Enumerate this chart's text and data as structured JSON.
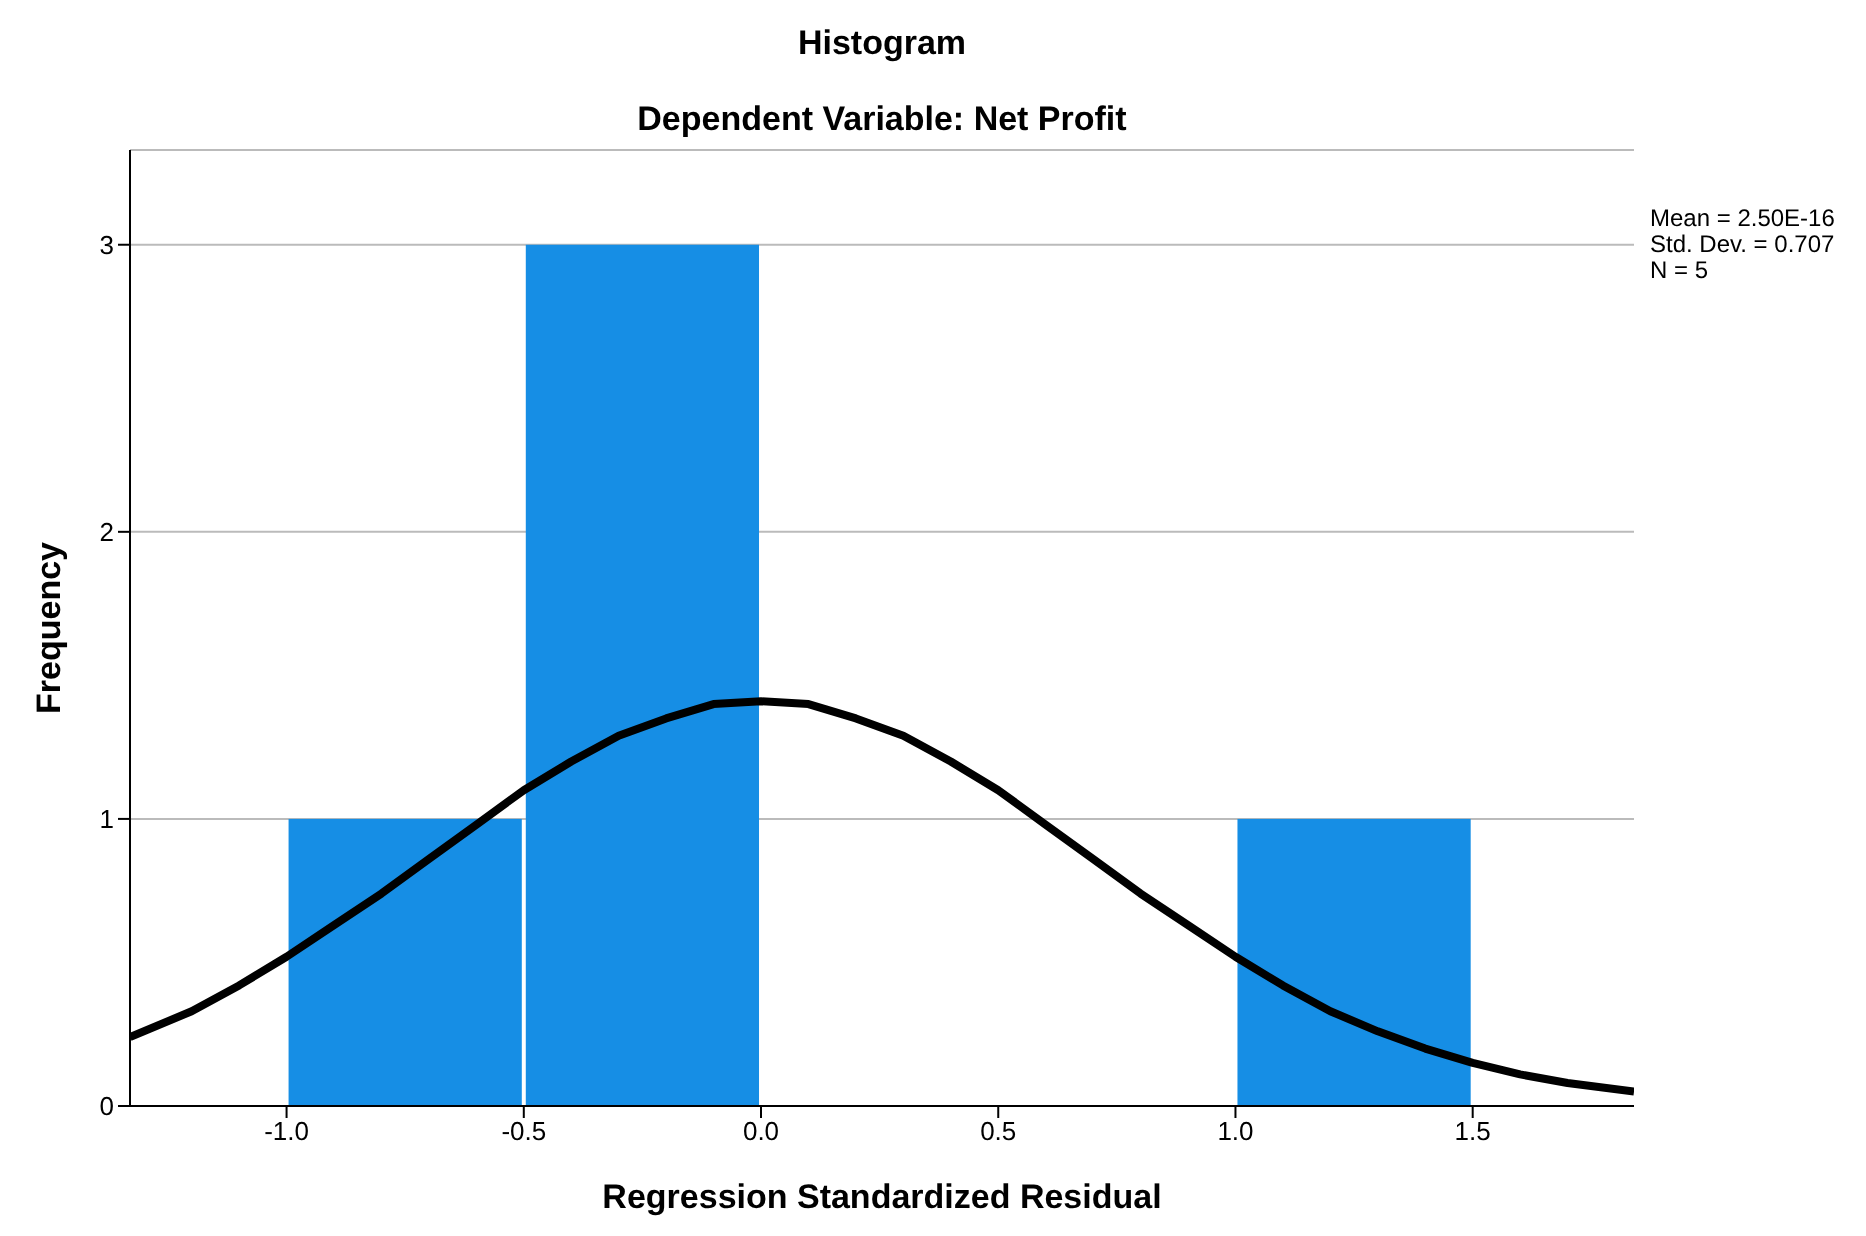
{
  "chart_data": {
    "type": "histogram",
    "title": "Histogram",
    "subtitle": "Dependent Variable: Net Profit",
    "xlabel": "Regression Standardized Residual",
    "ylabel": "Frequency",
    "bins": [
      -1.0,
      -0.5,
      0.0,
      0.5,
      1.0,
      1.5
    ],
    "values": [
      1,
      3,
      0,
      0,
      1
    ],
    "color": "#168ee5",
    "series": [
      {
        "type": "line",
        "color": "#000000",
        "x": [
          -1.33,
          -1.2,
          -1.1,
          -1.0,
          -0.9,
          -0.8,
          -0.7,
          -0.6,
          -0.5,
          -0.4,
          -0.3,
          -0.2,
          -0.1,
          0.0,
          0.1,
          0.2,
          0.3,
          0.4,
          0.5,
          0.6,
          0.7,
          0.8,
          0.9,
          1.0,
          1.1,
          1.2,
          1.3,
          1.4,
          1.5,
          1.6,
          1.7,
          1.84
        ],
        "values": [
          0.24,
          0.33,
          0.42,
          0.52,
          0.63,
          0.74,
          0.86,
          0.98,
          1.1,
          1.2,
          1.29,
          1.35,
          1.4,
          1.41,
          1.4,
          1.35,
          1.29,
          1.2,
          1.1,
          0.98,
          0.86,
          0.74,
          0.63,
          0.52,
          0.42,
          0.33,
          0.26,
          0.2,
          0.15,
          0.11,
          0.08,
          0.05
        ]
      }
    ],
    "xlim": [
      -1.33,
      1.84
    ],
    "xticks": [
      {
        "value": -1,
        "label": "-1.0"
      },
      {
        "value": -0.5,
        "label": "-0.5"
      },
      {
        "value": 0,
        "label": "0.0"
      },
      {
        "value": 0.5,
        "label": "0.5"
      },
      {
        "value": 1,
        "label": "1.0"
      },
      {
        "value": 1.5,
        "label": "1.5"
      }
    ],
    "ylim": [
      0,
      3.33
    ],
    "yticks": [
      0,
      1,
      2,
      3
    ],
    "grid": "y",
    "legend": false,
    "marker": "none",
    "line_style": "solid",
    "annotations": [
      "Mean = 2.50E-16",
      "Std. Dev. = 0.707",
      "N = 5"
    ]
  }
}
